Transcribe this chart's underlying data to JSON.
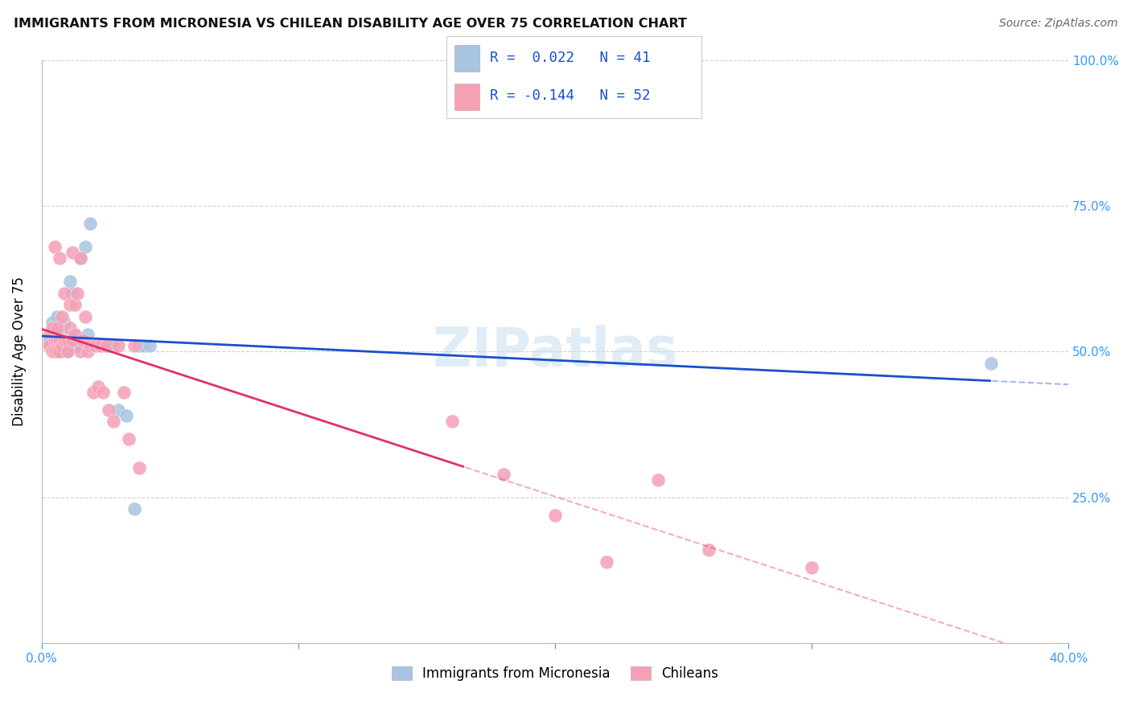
{
  "title": "IMMIGRANTS FROM MICRONESIA VS CHILEAN DISABILITY AGE OVER 75 CORRELATION CHART",
  "source": "Source: ZipAtlas.com",
  "ylabel_label": "Disability Age Over 75",
  "xlim": [
    0.0,
    0.4
  ],
  "ylim": [
    0.0,
    1.0
  ],
  "R_blue": 0.022,
  "N_blue": 41,
  "R_pink": -0.144,
  "N_pink": 52,
  "blue_color": "#a8c4e0",
  "pink_color": "#f4a0b5",
  "blue_line_color": "#1a4fcc",
  "pink_line_color": "#e03070",
  "legend_label_blue": "Immigrants from Micronesia",
  "legend_label_pink": "Chileans",
  "watermark": "ZIPatlas",
  "blue_scatter_x": [
    0.003,
    0.004,
    0.004,
    0.005,
    0.005,
    0.005,
    0.006,
    0.006,
    0.006,
    0.007,
    0.007,
    0.008,
    0.008,
    0.009,
    0.009,
    0.01,
    0.01,
    0.011,
    0.011,
    0.012,
    0.012,
    0.013,
    0.014,
    0.015,
    0.016,
    0.017,
    0.018,
    0.019,
    0.02,
    0.022,
    0.023,
    0.025,
    0.026,
    0.028,
    0.03,
    0.033,
    0.036,
    0.038,
    0.04,
    0.042,
    0.37
  ],
  "blue_scatter_y": [
    0.52,
    0.53,
    0.55,
    0.5,
    0.52,
    0.54,
    0.5,
    0.52,
    0.56,
    0.51,
    0.54,
    0.5,
    0.53,
    0.51,
    0.55,
    0.5,
    0.52,
    0.51,
    0.62,
    0.51,
    0.6,
    0.53,
    0.51,
    0.66,
    0.52,
    0.68,
    0.53,
    0.72,
    0.51,
    0.51,
    0.51,
    0.51,
    0.51,
    0.51,
    0.4,
    0.39,
    0.23,
    0.51,
    0.51,
    0.51,
    0.48
  ],
  "pink_scatter_x": [
    0.003,
    0.003,
    0.004,
    0.004,
    0.005,
    0.005,
    0.005,
    0.006,
    0.006,
    0.006,
    0.007,
    0.007,
    0.007,
    0.008,
    0.008,
    0.009,
    0.009,
    0.01,
    0.01,
    0.011,
    0.011,
    0.012,
    0.012,
    0.013,
    0.013,
    0.014,
    0.015,
    0.015,
    0.016,
    0.017,
    0.018,
    0.019,
    0.02,
    0.021,
    0.022,
    0.023,
    0.024,
    0.025,
    0.026,
    0.028,
    0.03,
    0.032,
    0.034,
    0.036,
    0.038,
    0.16,
    0.18,
    0.2,
    0.22,
    0.24,
    0.26,
    0.3
  ],
  "pink_scatter_y": [
    0.53,
    0.51,
    0.5,
    0.54,
    0.52,
    0.5,
    0.68,
    0.52,
    0.5,
    0.54,
    0.52,
    0.5,
    0.66,
    0.51,
    0.56,
    0.52,
    0.6,
    0.52,
    0.5,
    0.54,
    0.58,
    0.52,
    0.67,
    0.53,
    0.58,
    0.6,
    0.5,
    0.66,
    0.52,
    0.56,
    0.5,
    0.51,
    0.43,
    0.51,
    0.44,
    0.51,
    0.43,
    0.51,
    0.4,
    0.38,
    0.51,
    0.43,
    0.35,
    0.51,
    0.3,
    0.38,
    0.29,
    0.22,
    0.14,
    0.28,
    0.16,
    0.13
  ]
}
